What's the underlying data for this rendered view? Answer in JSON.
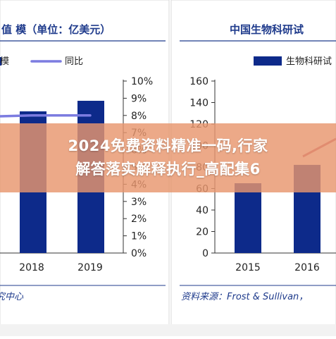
{
  "left_header": "值 模（单位：亿美元）",
  "right_header": "中国生物科研试",
  "left_source": "究中心",
  "right_source": "资料来源：Frost & Sullivan，",
  "banner": {
    "line1": "2024免费资料精准一码,行家",
    "line2": "解答落实解释执行_高配集6"
  },
  "colors": {
    "bar": "#0d2a8a",
    "line": "#7c7ce0",
    "accent_line": "#c0607a",
    "header_blue": "#1f3b8c"
  },
  "chart_data": [
    {
      "type": "bar",
      "categories": [
        "2018",
        "2019"
      ],
      "series": [
        {
          "name": "模",
          "values": [
            null,
            null
          ]
        },
        {
          "name": "同比",
          "values": [
            8.0,
            8.0
          ]
        }
      ],
      "legend": [
        "模",
        "同比"
      ],
      "y2lim": [
        0,
        10
      ],
      "y2ticks": [
        "0%",
        "1%",
        "2%",
        "3%",
        "4%",
        "5%",
        "6%",
        "7%",
        "8%",
        "9%",
        "10%"
      ],
      "legend_position": "top",
      "grid": false
    },
    {
      "type": "bar",
      "categories": [
        "2015",
        "2016"
      ],
      "series": [
        {
          "name": "生物科研试",
          "values": [
            null,
            82
          ]
        }
      ],
      "legend": [
        "生物科研试"
      ],
      "ylim": [
        0,
        160
      ],
      "yticks": [
        "0",
        "20",
        "40",
        "60",
        "80",
        "100",
        "120",
        "140",
        "160"
      ],
      "legend_position": "top",
      "grid": false
    }
  ]
}
